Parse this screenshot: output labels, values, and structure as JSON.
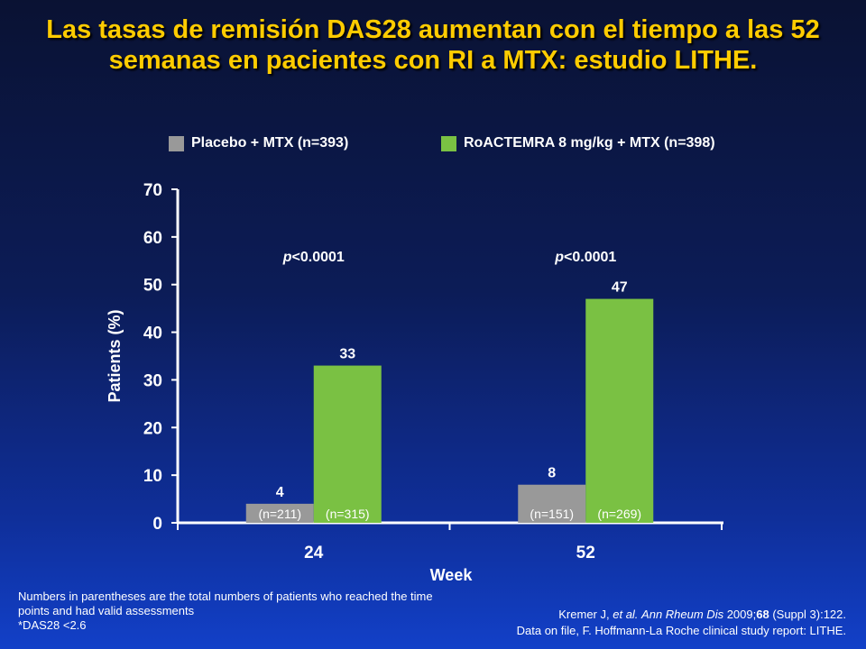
{
  "title": "Las tasas de remisión DAS28 aumentan con el tiempo a las 52 semanas en pacientes con RI a MTX: estudio LITHE.",
  "colors": {
    "title": "#ffcc00",
    "placebo": "#999999",
    "actemra": "#7ac143",
    "axis": "#ffffff"
  },
  "chart_data": {
    "type": "bar",
    "categories": [
      "24",
      "52"
    ],
    "series": [
      {
        "name": "Placebo + MTX (n=393)",
        "values": [
          4,
          8
        ],
        "n_labels": [
          "(n=211)",
          "(n=151)"
        ],
        "color": "#999999"
      },
      {
        "name": "RoACTEMRA 8 mg/kg + MTX (n=398)",
        "values": [
          33,
          47
        ],
        "n_labels": [
          "(n=315)",
          "(n=269)"
        ],
        "color": "#7ac143"
      }
    ],
    "value_labels": [
      [
        "4",
        "33"
      ],
      [
        "8",
        "47"
      ]
    ],
    "p_values": [
      "p<0.0001",
      "p<0.0001"
    ],
    "ylabel": "Patients (%)",
    "xlabel": "Week",
    "ylim": [
      0,
      70
    ],
    "yticks": [
      0,
      10,
      20,
      30,
      40,
      50,
      60,
      70
    ],
    "legend_position": "top"
  },
  "footnote": {
    "line1": "Numbers in parentheses are the total numbers of patients who reached the time points and had valid assessments",
    "line2": "*DAS28 <2.6"
  },
  "source": {
    "authors": "Kremer J, ",
    "etal": "et al.",
    "journal": "Ann Rheum Dis",
    "year": " 2009;",
    "volume": "68",
    "pages": " (Suppl 3):122.",
    "line2": "Data on file, F. Hoffmann-La Roche clinical study report: LITHE."
  }
}
